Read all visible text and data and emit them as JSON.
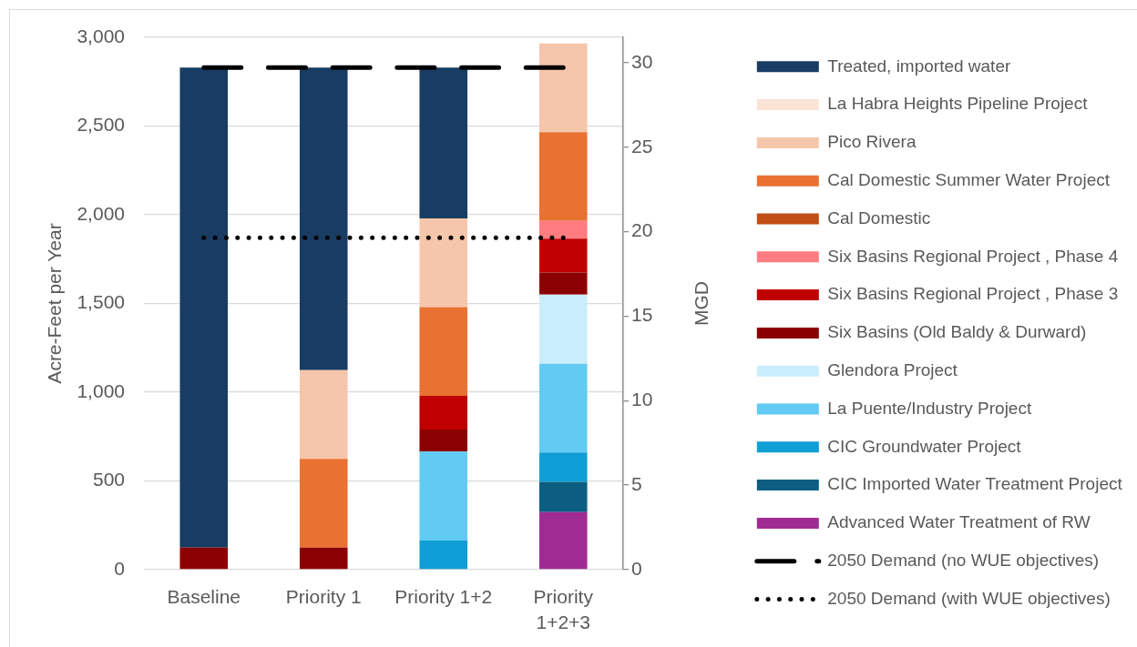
{
  "chart_data": {
    "type": "bar",
    "stacked": true,
    "ylabel": "Acre-Feet per Year",
    "y2label": "MGD",
    "categories": [
      "Baseline",
      "Priority 1",
      "Priority 1+2",
      "Priority 1+2+3"
    ],
    "ylim": [
      0,
      3000
    ],
    "yticks": [
      0,
      500,
      {
        "value": 1000,
        "label": "1,000"
      },
      {
        "value": 1500,
        "label": "1,500"
      },
      {
        "value": 2000,
        "label": "2,000"
      },
      {
        "value": 2500,
        "label": "2,500"
      },
      {
        "value": 3000,
        "label": "3,000"
      }
    ],
    "y2lim": [
      0,
      31.5
    ],
    "y2ticks": [
      0,
      5,
      10,
      15,
      20,
      25,
      30
    ],
    "grid": "y",
    "legend": "right",
    "marker": "none",
    "series": [
      {
        "name": "Advanced Water Treatment of RW",
        "color": "#a02b93",
        "values": [
          null,
          null,
          null,
          325
        ]
      },
      {
        "name": "CIC Imported Water Treatment Project",
        "color": "#0b5e82",
        "values": [
          null,
          null,
          null,
          170
        ]
      },
      {
        "name": "CIC Groundwater Project",
        "color": "#0f9ed5",
        "values": [
          null,
          null,
          165,
          165
        ]
      },
      {
        "name": "La Puente/Industry Project",
        "color": "#61cbf3",
        "values": [
          null,
          null,
          500,
          500
        ]
      },
      {
        "name": "Glendora Project",
        "color": "#caedfb",
        "values": [
          null,
          null,
          null,
          390
        ]
      },
      {
        "name": "Six Basins (Old Baldy & Durward)",
        "color": "#8b0000",
        "values": [
          125,
          125,
          125,
          125
        ]
      },
      {
        "name": "Six Basins Regional Project , Phase 3",
        "color": "#c00000",
        "values": [
          null,
          null,
          190,
          190
        ]
      },
      {
        "name": "Six Basins Regional Project , Phase 4",
        "color": "#ff7c80",
        "values": [
          null,
          null,
          null,
          100
        ]
      },
      {
        "name": "Cal Domestic",
        "color": "#c04f15",
        "values": [
          null,
          null,
          null,
          null
        ]
      },
      {
        "name": "Cal Domestic Summer Water Project",
        "color": "#e97132",
        "values": [
          null,
          500,
          500,
          500
        ]
      },
      {
        "name": "Pico Rivera",
        "color": "#f5c6ab",
        "values": [
          null,
          500,
          500,
          500
        ]
      },
      {
        "name": "La Habra Heights Pipeline Project",
        "color": "#fbe3d6",
        "values": [
          null,
          null,
          null,
          null
        ]
      },
      {
        "name": "Treated, imported water",
        "color": "#193c62",
        "values": [
          2705,
          1705,
          850,
          null
        ]
      },
      {
        "name": "2050 Demand (no WUE objectives)",
        "type": "line",
        "color": "#000000",
        "line_style": "dashed",
        "values": [
          2830,
          2830,
          2830,
          2830
        ]
      },
      {
        "name": "2050 Demand (with WUE objectives)",
        "type": "line",
        "color": "#000000",
        "line_style": "dotted",
        "values": [
          1870,
          1870,
          1870,
          1870
        ]
      }
    ]
  }
}
